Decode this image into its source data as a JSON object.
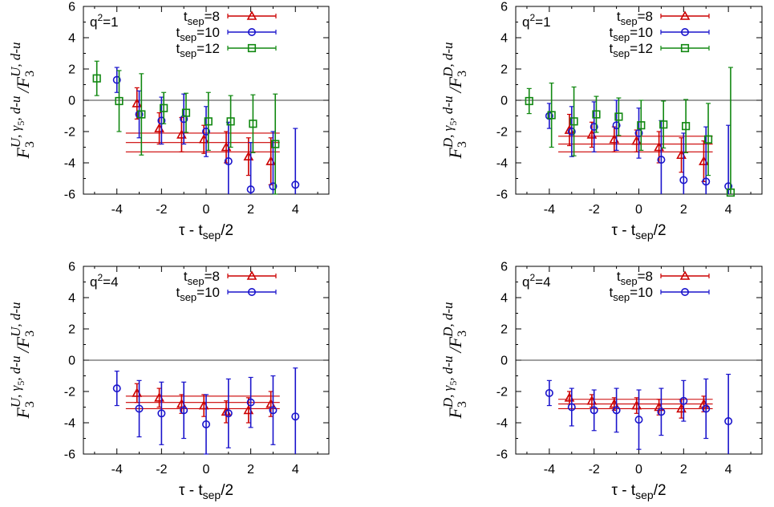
{
  "chart_data": [
    {
      "type": "scatter",
      "ylabel": "F3^U, γ5, d-u / F3^U, d-u",
      "ylabel_parts": {
        "a": "F",
        "a_sub": "3",
        "a_sup": "U, γ",
        "g_sub": "5",
        "mid": ", d-u",
        "slash": "/F",
        "b_sub": "3",
        "b_sup": "U, d-u"
      },
      "xlabel": "τ - t",
      "xlabel_sub": "sep",
      "xlabel_tail": "/2",
      "q2_label": "q",
      "q2_sup": "2",
      "q2_value": "=1",
      "xlim": [
        -5.5,
        5.5
      ],
      "ylim": [
        -6,
        6
      ],
      "xticks": [
        "-4",
        "-2",
        "0",
        "2",
        "4"
      ],
      "yticks": [
        "6",
        "4",
        "2",
        "0",
        "-2",
        "-4",
        "-6"
      ],
      "series": [
        {
          "name": "tsep=8",
          "label_main": "t",
          "label_sub": "sep",
          "label_val": "=8",
          "color": "#cc0000",
          "marker": "triangle",
          "points": [
            [
              -3.1,
              -0.2,
              1.0
            ],
            [
              -2.1,
              -1.8,
              1.0
            ],
            [
              -1.1,
              -2.2,
              1.1
            ],
            [
              -0.1,
              -2.5,
              0.9
            ],
            [
              0.9,
              -3.0,
              1.0
            ],
            [
              1.9,
              -3.6,
              1.2
            ],
            [
              2.9,
              -3.9,
              1.5
            ]
          ],
          "fit": {
            "x": [
              -3.6,
              3.3
            ],
            "center": -2.7,
            "band": [
              -3.3,
              -2.1
            ]
          }
        },
        {
          "name": "tsep=10",
          "label_main": "t",
          "label_sub": "sep",
          "label_val": "=10",
          "color": "#1a14cc",
          "marker": "circle",
          "points": [
            [
              -4,
              1.3,
              0.8
            ],
            [
              -3,
              -0.9,
              1.5
            ],
            [
              -2,
              -1.3,
              1.5
            ],
            [
              -1,
              -1.2,
              1.6
            ],
            [
              0,
              -2.0,
              1.6
            ],
            [
              1,
              -3.9,
              2.5
            ],
            [
              2,
              -5.7,
              3.0
            ],
            [
              3,
              -5.5,
              3.5
            ],
            [
              4,
              -5.4,
              3.6
            ]
          ],
          "fit": null
        },
        {
          "name": "tsep=12",
          "label_main": "t",
          "label_sub": "sep",
          "label_val": "=12",
          "color": "#118811",
          "marker": "square",
          "points": [
            [
              -4.9,
              1.4,
              1.1
            ],
            [
              -3.9,
              -0.05,
              1.95
            ],
            [
              -2.9,
              -0.9,
              2.6
            ],
            [
              -1.9,
              -0.5,
              1.0
            ],
            [
              -0.9,
              -0.8,
              1.25
            ],
            [
              0.1,
              -1.35,
              1.85
            ],
            [
              1.1,
              -1.35,
              1.65
            ],
            [
              2.1,
              -1.5,
              1.85
            ],
            [
              3.1,
              -2.8,
              3.2
            ]
          ],
          "fit": null
        }
      ]
    },
    {
      "type": "scatter",
      "ylabel": "F3^D, γ5, d-u / F3^D, d-u",
      "ylabel_parts": {
        "a": "F",
        "a_sub": "3",
        "a_sup": "D, γ",
        "g_sub": "5",
        "mid": ", d-u",
        "slash": "/F",
        "b_sub": "3",
        "b_sup": "D, d-u"
      },
      "xlabel": "τ - t",
      "xlabel_sub": "sep",
      "xlabel_tail": "/2",
      "q2_label": "q",
      "q2_sup": "2",
      "q2_value": "=1",
      "xlim": [
        -5.5,
        5.5
      ],
      "ylim": [
        -6,
        6
      ],
      "xticks": [
        "-4",
        "-2",
        "0",
        "2",
        "4"
      ],
      "yticks": [
        "6",
        "4",
        "2",
        "0",
        "-2",
        "-4",
        "-6"
      ],
      "series": [
        {
          "name": "tsep=8",
          "label_main": "t",
          "label_sub": "sep",
          "label_val": "=8",
          "color": "#cc0000",
          "marker": "triangle",
          "points": [
            [
              -3.1,
              -1.9,
              1.0
            ],
            [
              -2.1,
              -2.2,
              0.8
            ],
            [
              -1.1,
              -2.5,
              0.8
            ],
            [
              -0.1,
              -2.6,
              0.7
            ],
            [
              0.9,
              -3.0,
              1.0
            ],
            [
              1.9,
              -3.5,
              1.1
            ],
            [
              2.9,
              -3.9,
              1.3
            ]
          ],
          "fit": {
            "x": [
              -3.6,
              3.3
            ],
            "center": -2.8,
            "band": [
              -3.3,
              -2.3
            ]
          }
        },
        {
          "name": "tsep=10",
          "label_main": "t",
          "label_sub": "sep",
          "label_val": "=10",
          "color": "#1a14cc",
          "marker": "circle",
          "points": [
            [
              -4,
              -1.0,
              0.8
            ],
            [
              -3,
              -2.0,
              1.6
            ],
            [
              -2,
              -1.7,
              1.6
            ],
            [
              -1,
              -1.6,
              1.6
            ],
            [
              0,
              -2.1,
              1.6
            ],
            [
              1,
              -3.8,
              2.5
            ],
            [
              2,
              -5.1,
              3.0
            ],
            [
              3,
              -5.2,
              3.5
            ],
            [
              4,
              -5.5,
              3.9
            ]
          ],
          "fit": null
        },
        {
          "name": "tsep=12",
          "label_main": "t",
          "label_sub": "sep",
          "label_val": "=12",
          "color": "#118811",
          "marker": "square",
          "points": [
            [
              -4.9,
              -0.05,
              0.8
            ],
            [
              -3.9,
              -0.95,
              2.05
            ],
            [
              -2.9,
              -1.35,
              2.2
            ],
            [
              -1.9,
              -0.9,
              1.15
            ],
            [
              -0.9,
              -1.05,
              1.2
            ],
            [
              0.1,
              -1.6,
              1.6
            ],
            [
              1.1,
              -1.55,
              1.5
            ],
            [
              2.1,
              -1.65,
              1.7
            ],
            [
              3.1,
              -2.5,
              2.3
            ],
            [
              4.1,
              -5.9,
              8.0
            ]
          ],
          "fit": null
        }
      ]
    },
    {
      "type": "scatter",
      "ylabel": "F3^U, γ5, d-u / F3^U, d-u",
      "ylabel_parts": {
        "a": "F",
        "a_sub": "3",
        "a_sup": "U, γ",
        "g_sub": "5",
        "mid": ", d-u",
        "slash": "/F",
        "b_sub": "3",
        "b_sup": "U, d-u"
      },
      "xlabel": "τ - t",
      "xlabel_sub": "sep",
      "xlabel_tail": "/2",
      "q2_label": "q",
      "q2_sup": "2",
      "q2_value": "=4",
      "xlim": [
        -5.5,
        5.5
      ],
      "ylim": [
        -6,
        6
      ],
      "xticks": [
        "-4",
        "-2",
        "0",
        "2",
        "4"
      ],
      "yticks": [
        "6",
        "4",
        "2",
        "0",
        "-2",
        "-4",
        "-6"
      ],
      "series": [
        {
          "name": "tsep=8",
          "label_main": "t",
          "label_sub": "sep",
          "label_val": "=8",
          "color": "#cc0000",
          "marker": "triangle",
          "points": [
            [
              -3.1,
              -2.1,
              0.6
            ],
            [
              -2.1,
              -2.4,
              0.6
            ],
            [
              -1.1,
              -2.8,
              0.6
            ],
            [
              -0.1,
              -2.9,
              0.7
            ],
            [
              0.9,
              -3.3,
              0.7
            ],
            [
              1.9,
              -3.2,
              0.8
            ],
            [
              2.9,
              -2.8,
              0.8
            ]
          ],
          "fit": {
            "x": [
              -3.6,
              3.3
            ],
            "center": -2.7,
            "band": [
              -3.1,
              -2.3
            ]
          }
        },
        {
          "name": "tsep=10",
          "label_main": "t",
          "label_sub": "sep",
          "label_val": "=10",
          "color": "#1a14cc",
          "marker": "circle",
          "points": [
            [
              -4,
              -1.8,
              1.1
            ],
            [
              -3,
              -3.1,
              1.8
            ],
            [
              -2,
              -3.4,
              2.0
            ],
            [
              -1,
              -3.2,
              1.8
            ],
            [
              0,
              -4.1,
              1.9
            ],
            [
              1,
              -3.4,
              2.2
            ],
            [
              2,
              -2.7,
              1.6
            ],
            [
              3,
              -3.2,
              2.2
            ],
            [
              4,
              -3.6,
              3.1
            ]
          ],
          "fit": null
        }
      ]
    },
    {
      "type": "scatter",
      "ylabel": "F3^D, γ5, d-u / F3^D, d-u",
      "ylabel_parts": {
        "a": "F",
        "a_sub": "3",
        "a_sup": "D, γ",
        "g_sub": "5",
        "mid": ", d-u",
        "slash": "/F",
        "b_sub": "3",
        "b_sup": "D, d-u"
      },
      "xlabel": "τ - t",
      "xlabel_sub": "sep",
      "xlabel_tail": "/2",
      "q2_label": "q",
      "q2_sup": "2",
      "q2_value": "=4",
      "xlim": [
        -5.5,
        5.5
      ],
      "ylim": [
        -6,
        6
      ],
      "xticks": [
        "-4",
        "-2",
        "0",
        "2",
        "4"
      ],
      "yticks": [
        "6",
        "4",
        "2",
        "0",
        "-2",
        "-4",
        "-6"
      ],
      "series": [
        {
          "name": "tsep=8",
          "label_main": "t",
          "label_sub": "sep",
          "label_val": "=8",
          "color": "#cc0000",
          "marker": "triangle",
          "points": [
            [
              -3.1,
              -2.4,
              0.4
            ],
            [
              -2.1,
              -2.6,
              0.4
            ],
            [
              -1.1,
              -2.8,
              0.4
            ],
            [
              -0.1,
              -2.9,
              0.5
            ],
            [
              0.9,
              -3.0,
              0.5
            ],
            [
              1.9,
              -3.1,
              0.6
            ],
            [
              2.9,
              -2.8,
              0.5
            ]
          ],
          "fit": {
            "x": [
              -3.6,
              3.3
            ],
            "center": -2.8,
            "band": [
              -3.1,
              -2.5
            ]
          }
        },
        {
          "name": "tsep=10",
          "label_main": "t",
          "label_sub": "sep",
          "label_val": "=10",
          "color": "#1a14cc",
          "marker": "circle",
          "points": [
            [
              -4,
              -2.1,
              0.8
            ],
            [
              -3,
              -3.0,
              1.2
            ],
            [
              -2,
              -3.2,
              1.3
            ],
            [
              -1,
              -3.2,
              1.4
            ],
            [
              0,
              -3.8,
              1.9
            ],
            [
              1,
              -3.3,
              1.5
            ],
            [
              2,
              -2.6,
              1.3
            ],
            [
              3,
              -3.1,
              1.9
            ],
            [
              4,
              -3.9,
              3.0
            ]
          ],
          "fit": null
        }
      ]
    }
  ]
}
